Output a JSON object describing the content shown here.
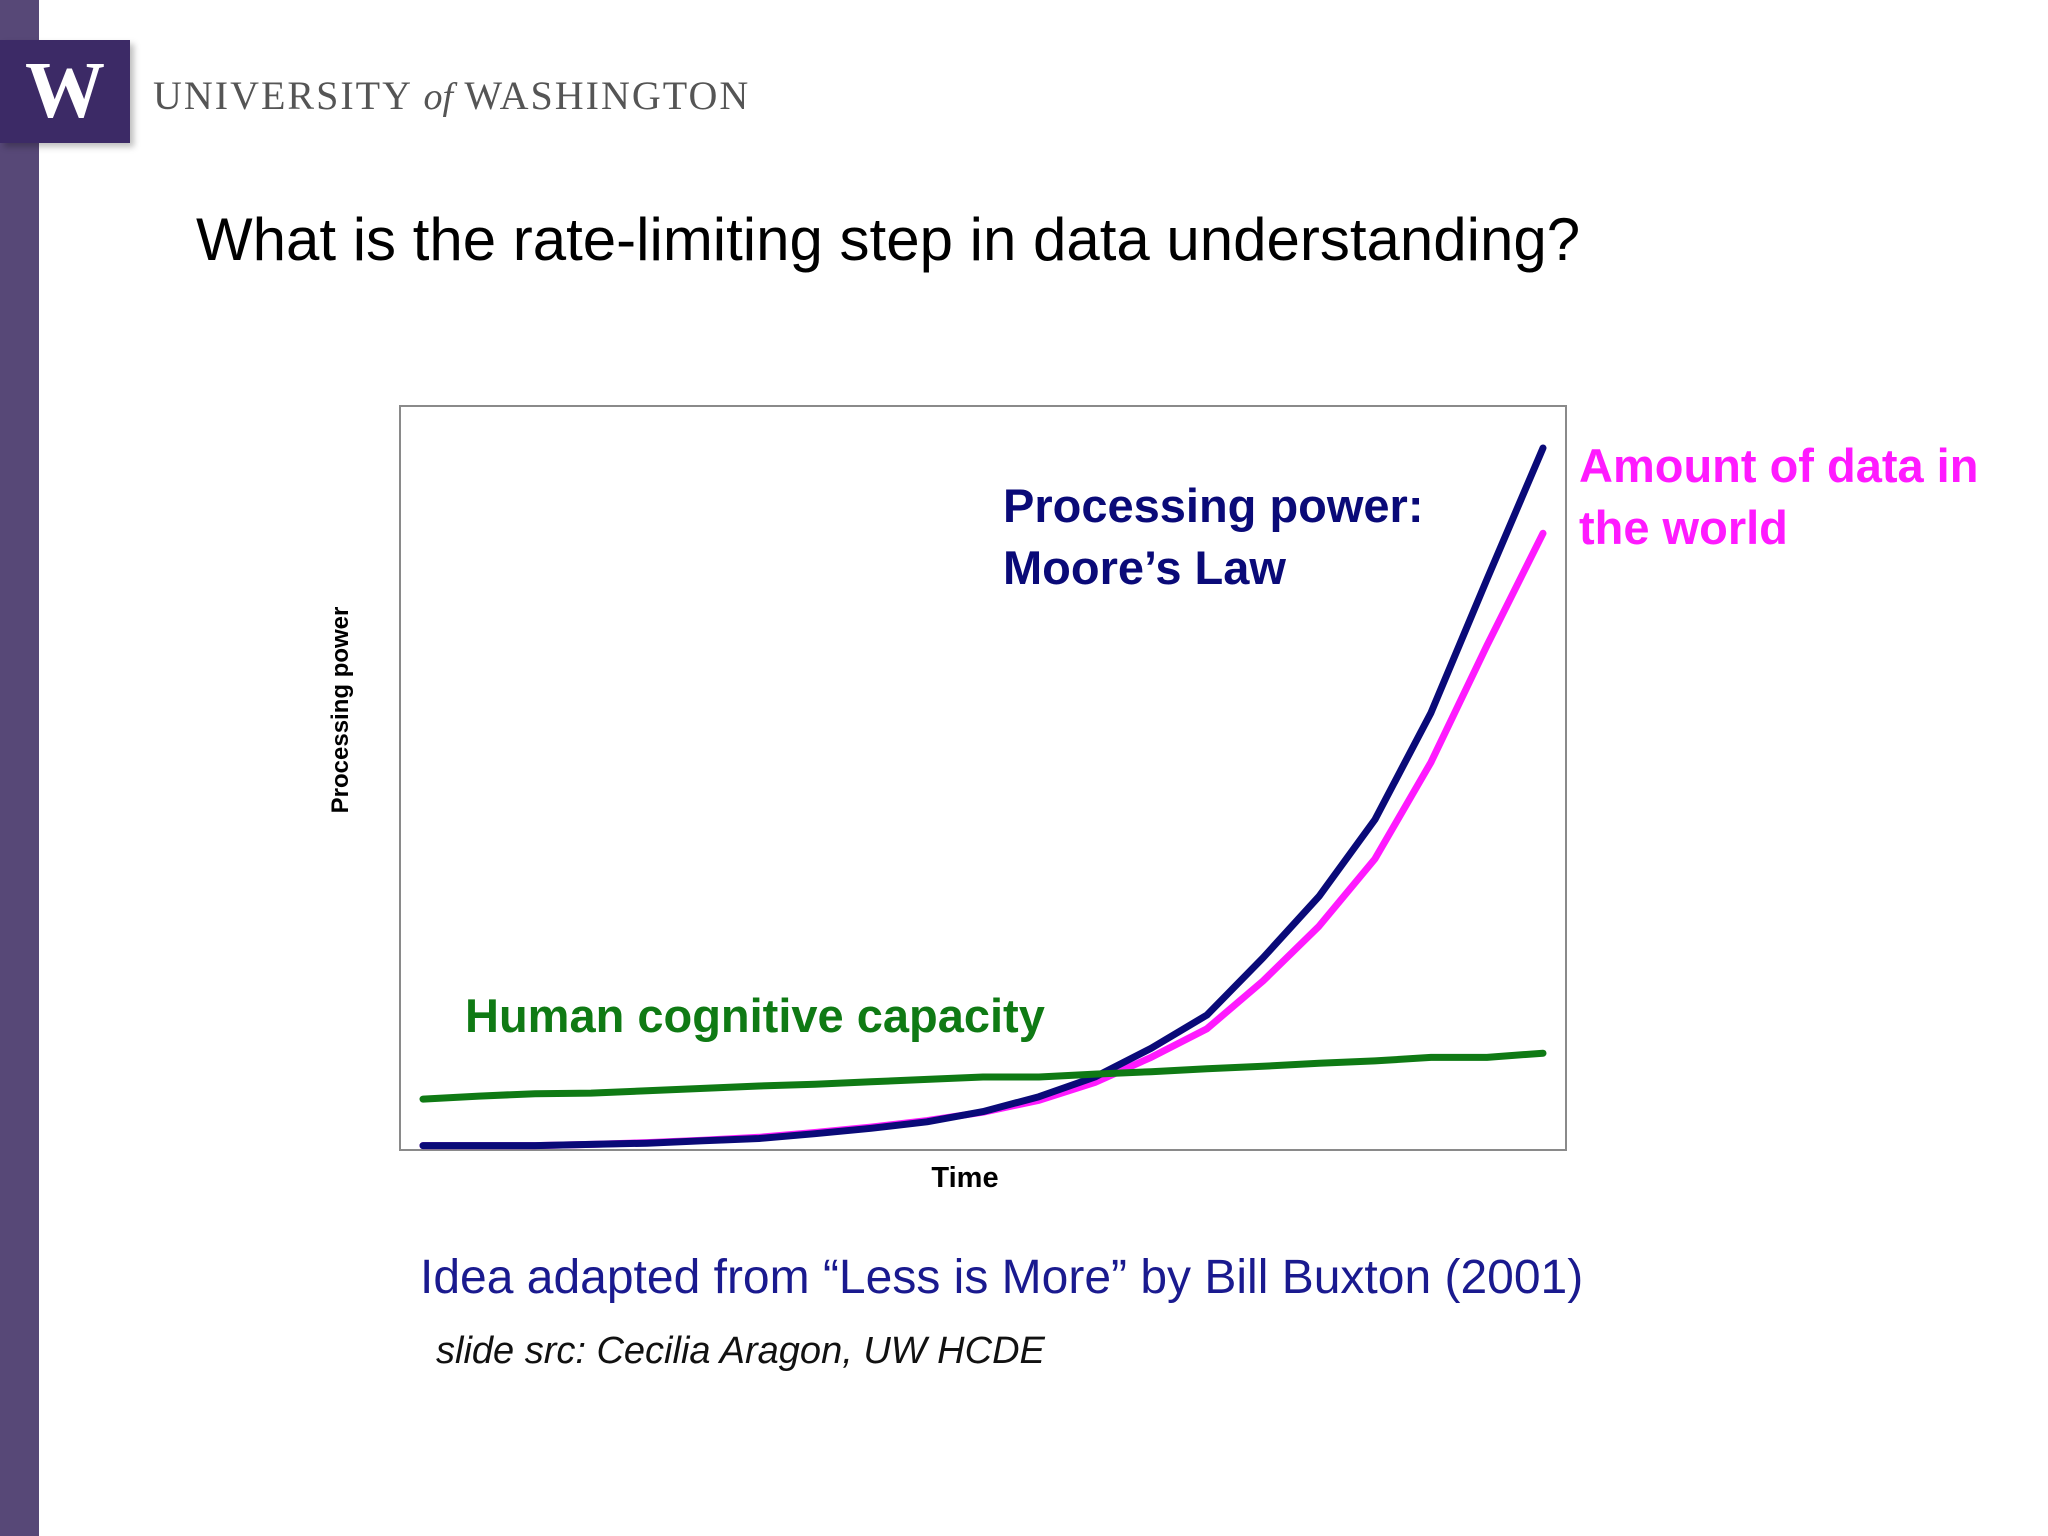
{
  "header": {
    "logo_letter": "W",
    "wordmark_left": "UNIVERSITY",
    "wordmark_of": "of",
    "wordmark_right": "WASHINGTON"
  },
  "slide": {
    "title": "What is the rate-limiting step in data understanding?",
    "caption": "Idea adapted from “Less is More” by Bill Buxton (2001)",
    "credit": "slide src: Cecilia Aragon, UW HCDE"
  },
  "colors": {
    "brand_purple": "#3c2a66",
    "sidebar_purple": "#574877",
    "moore": "#0a0a78",
    "data": "#ff1aff",
    "human": "#0f7a14",
    "caption": "#1a1a8f"
  },
  "chart_data": {
    "type": "line",
    "title": "",
    "xlabel": "Time",
    "ylabel": "Processing power",
    "xlim": [
      0,
      20
    ],
    "ylim": [
      0,
      100
    ],
    "grid": false,
    "x": [
      0,
      1,
      2,
      3,
      4,
      5,
      6,
      7,
      8,
      9,
      10,
      11,
      12,
      13,
      14,
      15,
      16,
      17,
      18,
      19,
      20
    ],
    "series": [
      {
        "name": "Processing power: Moore’s Law",
        "color": "#0a0a78",
        "values": [
          0.4,
          0.4,
          0.4,
          0.6,
          0.8,
          1.2,
          1.6,
          2.4,
          3.3,
          4.4,
          6.1,
          8.6,
          11.9,
          16.7,
          22.3,
          31.9,
          42.2,
          55.1,
          73.0,
          95.4,
          117.4
        ]
      },
      {
        "name": "Amount of data in the world",
        "color": "#ff1aff",
        "values": [
          0.4,
          0.4,
          0.4,
          0.6,
          0.9,
          1.3,
          1.8,
          2.6,
          3.5,
          4.6,
          6.0,
          8.0,
          11.0,
          15.2,
          20.0,
          28.0,
          37.2,
          48.5,
          64.7,
          84.3,
          103.1
        ]
      },
      {
        "name": "Human cognitive capacity",
        "color": "#0f7a14",
        "values": [
          8.2,
          8.7,
          9.1,
          9.2,
          9.6,
          10.0,
          10.4,
          10.7,
          11.1,
          11.5,
          11.9,
          11.9,
          12.4,
          12.8,
          13.3,
          13.7,
          14.2,
          14.6,
          15.2,
          15.2,
          15.9
        ]
      }
    ],
    "annotations": [
      {
        "series": 0,
        "lines": [
          "Processing power:",
          "Moore’s Law"
        ]
      },
      {
        "series": 1,
        "lines": [
          "Amount of data in",
          "the world"
        ]
      },
      {
        "series": 2,
        "lines": [
          "Human cognitive capacity"
        ]
      }
    ]
  }
}
